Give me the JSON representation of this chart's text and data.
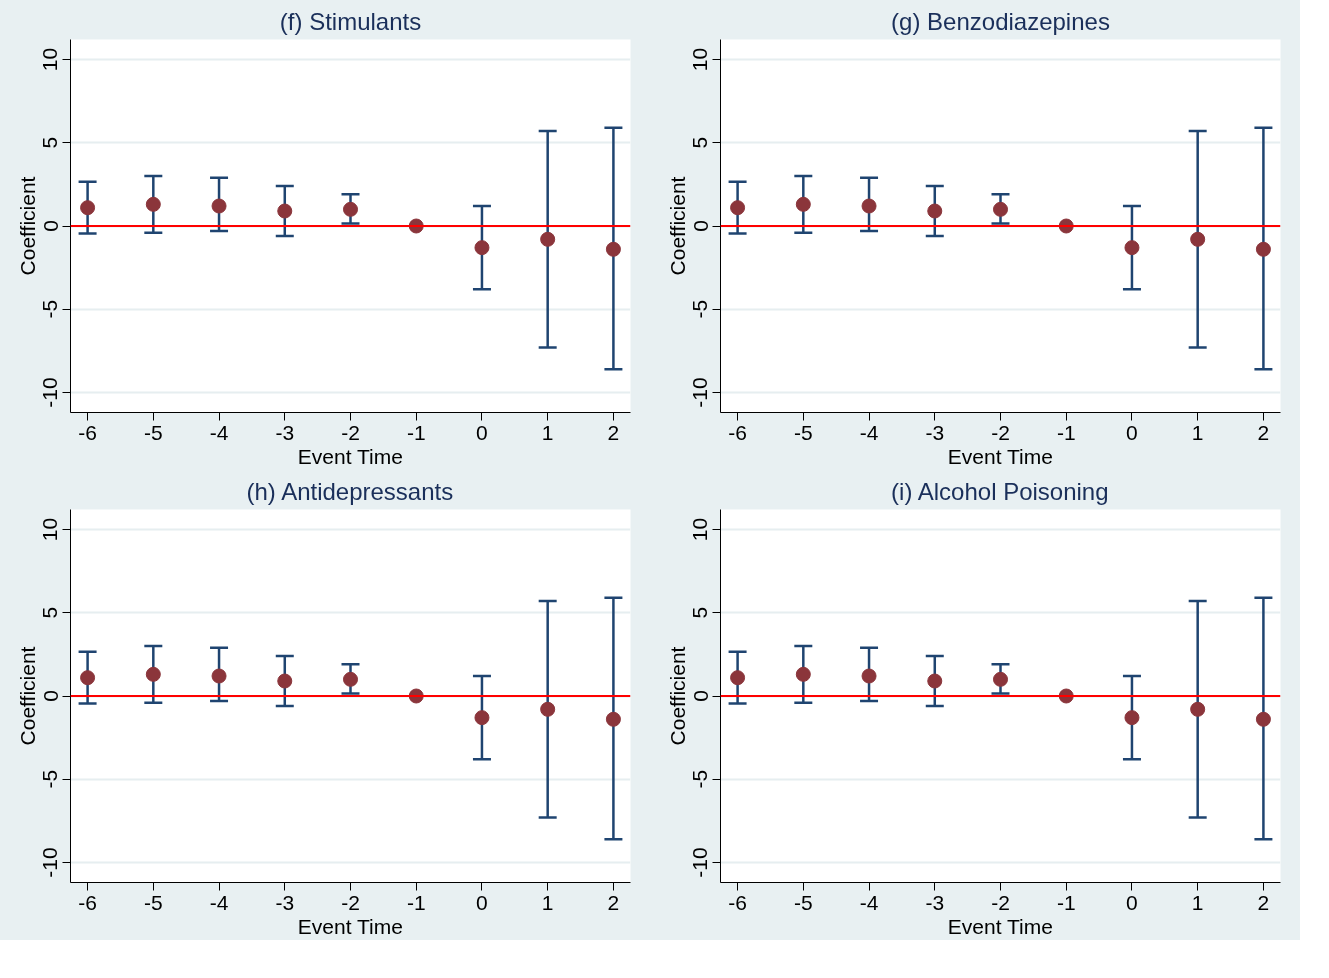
{
  "chart_data": [
    {
      "type": "scatter",
      "title": "(f) Stimulants",
      "xlabel": "Event Time",
      "ylabel": "Coefficient",
      "x": [
        -6,
        -5,
        -4,
        -3,
        -2,
        -1,
        0,
        1,
        2
      ],
      "series": [
        {
          "color": "#8b353b",
          "values": [
            1.1,
            1.3,
            1.2,
            0.9,
            1.0,
            0,
            -1.3,
            -0.8,
            -1.4
          ],
          "errors": [
            [
              -0.45,
              2.65
            ],
            [
              -0.4,
              3.0
            ],
            [
              -0.3,
              2.9
            ],
            [
              -0.6,
              2.4
            ],
            [
              0.15,
              1.9
            ],
            null,
            [
              -3.8,
              1.2
            ],
            [
              -7.3,
              5.7
            ],
            [
              -8.6,
              5.9
            ]
          ]
        }
      ],
      "xlim": [
        -6.26,
        2.26
      ],
      "ylim": [
        -11.2,
        11.2
      ],
      "xticks": [
        -6,
        -5,
        -4,
        -3,
        -2,
        -1,
        0,
        1,
        2
      ],
      "yticks": [
        -10,
        -5,
        0,
        5,
        10
      ],
      "grid": "y",
      "marker": "circle",
      "ref_lines": [
        {
          "axis": "y",
          "value": 0,
          "color": "#ff0000"
        }
      ]
    },
    {
      "type": "scatter",
      "title": "(g) Benzodiazepines",
      "xlabel": "Event Time",
      "ylabel": "Coefficient",
      "x": [
        -6,
        -5,
        -4,
        -3,
        -2,
        -1,
        0,
        1,
        2
      ],
      "series": [
        {
          "color": "#8b353b",
          "values": [
            1.1,
            1.3,
            1.2,
            0.9,
            1.0,
            0,
            -1.3,
            -0.8,
            -1.4
          ],
          "errors": [
            [
              -0.45,
              2.65
            ],
            [
              -0.4,
              3.0
            ],
            [
              -0.3,
              2.9
            ],
            [
              -0.6,
              2.4
            ],
            [
              0.15,
              1.9
            ],
            null,
            [
              -3.8,
              1.2
            ],
            [
              -7.3,
              5.7
            ],
            [
              -8.6,
              5.9
            ]
          ]
        }
      ],
      "xlim": [
        -6.26,
        2.26
      ],
      "ylim": [
        -11.2,
        11.2
      ],
      "xticks": [
        -6,
        -5,
        -4,
        -3,
        -2,
        -1,
        0,
        1,
        2
      ],
      "yticks": [
        -10,
        -5,
        0,
        5,
        10
      ],
      "grid": "y",
      "marker": "circle",
      "ref_lines": [
        {
          "axis": "y",
          "value": 0,
          "color": "#ff0000"
        }
      ]
    },
    {
      "type": "scatter",
      "title": "(h) Antidepressants",
      "xlabel": "Event Time",
      "ylabel": "Coefficient",
      "x": [
        -6,
        -5,
        -4,
        -3,
        -2,
        -1,
        0,
        1,
        2
      ],
      "series": [
        {
          "color": "#8b353b",
          "values": [
            1.1,
            1.3,
            1.2,
            0.9,
            1.0,
            0,
            -1.3,
            -0.8,
            -1.4
          ],
          "errors": [
            [
              -0.45,
              2.65
            ],
            [
              -0.4,
              3.0
            ],
            [
              -0.3,
              2.9
            ],
            [
              -0.6,
              2.4
            ],
            [
              0.15,
              1.9
            ],
            null,
            [
              -3.8,
              1.2
            ],
            [
              -7.3,
              5.7
            ],
            [
              -8.6,
              5.9
            ]
          ]
        }
      ],
      "xlim": [
        -6.26,
        2.26
      ],
      "ylim": [
        -11.2,
        11.2
      ],
      "xticks": [
        -6,
        -5,
        -4,
        -3,
        -2,
        -1,
        0,
        1,
        2
      ],
      "yticks": [
        -10,
        -5,
        0,
        5,
        10
      ],
      "grid": "y",
      "marker": "circle",
      "ref_lines": [
        {
          "axis": "y",
          "value": 0,
          "color": "#ff0000"
        }
      ]
    },
    {
      "type": "scatter",
      "title": "(i) Alcohol Poisoning",
      "xlabel": "Event Time",
      "ylabel": "Coefficient",
      "x": [
        -6,
        -5,
        -4,
        -3,
        -2,
        -1,
        0,
        1,
        2
      ],
      "series": [
        {
          "color": "#8b353b",
          "values": [
            1.1,
            1.3,
            1.2,
            0.9,
            1.0,
            0,
            -1.3,
            -0.8,
            -1.4
          ],
          "errors": [
            [
              -0.45,
              2.65
            ],
            [
              -0.4,
              3.0
            ],
            [
              -0.3,
              2.9
            ],
            [
              -0.6,
              2.4
            ],
            [
              0.15,
              1.9
            ],
            null,
            [
              -3.8,
              1.2
            ],
            [
              -7.3,
              5.7
            ],
            [
              -8.6,
              5.9
            ]
          ]
        }
      ],
      "xlim": [
        -6.26,
        2.26
      ],
      "ylim": [
        -11.2,
        11.2
      ],
      "xticks": [
        -6,
        -5,
        -4,
        -3,
        -2,
        -1,
        0,
        1,
        2
      ],
      "yticks": [
        -10,
        -5,
        0,
        5,
        10
      ],
      "grid": "y",
      "marker": "circle",
      "ref_lines": [
        {
          "axis": "y",
          "value": 0,
          "color": "#ff0000"
        }
      ]
    }
  ]
}
